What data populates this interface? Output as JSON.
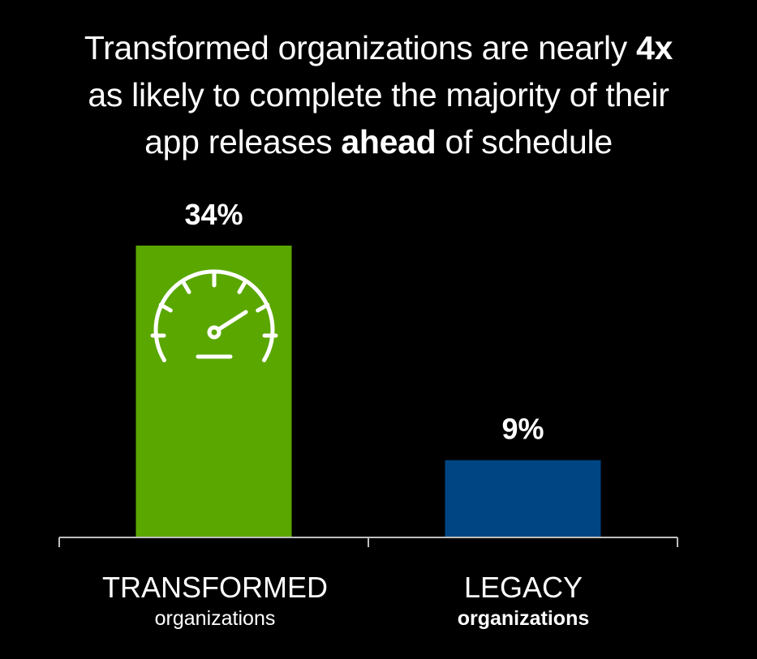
{
  "title": {
    "line1_pre": "Transformed organizations are nearly ",
    "line1_bold": "4x",
    "line2": "as likely to complete the majority of their",
    "line3_pre": "app releases ",
    "line3_bold": "ahead",
    "line3_post": " of schedule"
  },
  "chart_data": {
    "type": "bar",
    "title": "Transformed organizations are nearly 4x as likely to complete the majority of their app releases ahead of schedule",
    "categories": [
      "TRANSFORMED",
      "LEGACY"
    ],
    "category_subtitles": [
      "organizations",
      "organizations"
    ],
    "values": [
      34,
      9
    ],
    "data_labels": [
      "34%",
      "9%"
    ],
    "bar_colors": [
      "#5aa700",
      "#004583"
    ],
    "ylim": [
      0,
      34
    ],
    "xlabel": "",
    "ylabel": "",
    "grid": false,
    "icon": "speedometer-icon"
  },
  "colors": {
    "background": "#000000",
    "text": "#ffffff",
    "axis": "#bfbfbf"
  }
}
